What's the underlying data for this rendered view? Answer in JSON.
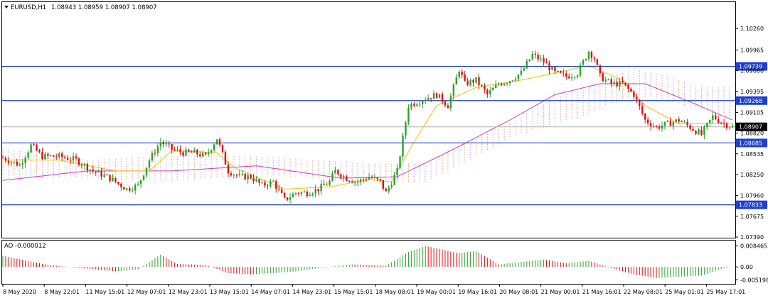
{
  "header": {
    "symbol_label": "EURUSD,H1",
    "ohlc_label": "1.08943 1.08959 1.08907 1.08907"
  },
  "indicator": {
    "label": "AO -0.000012"
  },
  "colors": {
    "grid": "#000000",
    "bull_candle": "#2aa12a",
    "bear_candle": "#e01010",
    "level_line": "#1f3fd0",
    "ma_fast": "#f2c200",
    "ma_slow": "#c040c0",
    "cloud_a": "#f0a070",
    "cloud_b": "#c8a0d8",
    "ao_up": "#2aa12a",
    "ao_down": "#e01010"
  },
  "chart_data": [
    {
      "type": "candlestick",
      "title": "EURUSD,H1",
      "ylim": [
        1.0739,
        1.1036
      ],
      "x_tick_labels": [
        "8 May 2020",
        "8 May 22:01",
        "11 May 15:01",
        "12 May 07:01",
        "12 May 23:01",
        "13 May 15:01",
        "14 May 07:01",
        "14 May 23:01",
        "15 May 15:01",
        "18 May 08:01",
        "19 May 00:01",
        "19 May 16:01",
        "20 May 08:01",
        "21 May 00:01",
        "21 May 16:01",
        "22 May 08:01",
        "25 May 01:01",
        "25 May 17:01"
      ],
      "y_tick_labels": [
        "1.10260",
        "1.09965",
        "1.09680",
        "1.09395",
        "1.09105",
        "1.08820",
        "1.08535",
        "1.08250",
        "1.07960",
        "1.07675",
        "1.07390"
      ],
      "horizontal_levels": [
        1.09739,
        1.09268,
        1.08685,
        1.07833
      ],
      "current_price": 1.08907,
      "close_path": [
        {
          "x": 0,
          "y": 1.0848
        },
        {
          "x": 6,
          "y": 1.0838
        },
        {
          "x": 10,
          "y": 1.0865
        },
        {
          "x": 14,
          "y": 1.085
        },
        {
          "x": 20,
          "y": 1.085
        },
        {
          "x": 26,
          "y": 1.0845
        },
        {
          "x": 32,
          "y": 1.083
        },
        {
          "x": 38,
          "y": 1.082
        },
        {
          "x": 44,
          "y": 1.0805
        },
        {
          "x": 48,
          "y": 1.081
        },
        {
          "x": 52,
          "y": 1.0845
        },
        {
          "x": 56,
          "y": 1.087
        },
        {
          "x": 60,
          "y": 1.086
        },
        {
          "x": 64,
          "y": 1.0855
        },
        {
          "x": 68,
          "y": 1.0855
        },
        {
          "x": 72,
          "y": 1.085
        },
        {
          "x": 76,
          "y": 1.0875
        },
        {
          "x": 80,
          "y": 1.083
        },
        {
          "x": 84,
          "y": 1.0822
        },
        {
          "x": 88,
          "y": 1.0822
        },
        {
          "x": 92,
          "y": 1.081
        },
        {
          "x": 96,
          "y": 1.0815
        },
        {
          "x": 100,
          "y": 1.079
        },
        {
          "x": 104,
          "y": 1.08
        },
        {
          "x": 108,
          "y": 1.08
        },
        {
          "x": 112,
          "y": 1.0805
        },
        {
          "x": 116,
          "y": 1.0815
        },
        {
          "x": 118,
          "y": 1.083
        },
        {
          "x": 122,
          "y": 1.082
        },
        {
          "x": 126,
          "y": 1.0815
        },
        {
          "x": 130,
          "y": 1.0822
        },
        {
          "x": 134,
          "y": 1.0815
        },
        {
          "x": 136,
          "y": 1.08
        },
        {
          "x": 140,
          "y": 1.083
        },
        {
          "x": 144,
          "y": 1.092
        },
        {
          "x": 150,
          "y": 1.093
        },
        {
          "x": 154,
          "y": 1.0935
        },
        {
          "x": 158,
          "y": 1.092
        },
        {
          "x": 162,
          "y": 1.097
        },
        {
          "x": 164,
          "y": 1.095
        },
        {
          "x": 168,
          "y": 1.0955
        },
        {
          "x": 172,
          "y": 1.0935
        },
        {
          "x": 176,
          "y": 1.095
        },
        {
          "x": 180,
          "y": 1.0955
        },
        {
          "x": 184,
          "y": 1.0965
        },
        {
          "x": 188,
          "y": 1.099
        },
        {
          "x": 192,
          "y": 1.098
        },
        {
          "x": 196,
          "y": 1.0965
        },
        {
          "x": 200,
          "y": 1.096
        },
        {
          "x": 204,
          "y": 1.0965
        },
        {
          "x": 208,
          "y": 1.0995
        },
        {
          "x": 210,
          "y": 1.0985
        },
        {
          "x": 212,
          "y": 1.096
        },
        {
          "x": 216,
          "y": 1.095
        },
        {
          "x": 220,
          "y": 1.095
        },
        {
          "x": 224,
          "y": 1.0935
        },
        {
          "x": 228,
          "y": 1.09
        },
        {
          "x": 232,
          "y": 1.089
        },
        {
          "x": 236,
          "y": 1.0895
        },
        {
          "x": 240,
          "y": 1.09
        },
        {
          "x": 244,
          "y": 1.089
        },
        {
          "x": 248,
          "y": 1.088
        },
        {
          "x": 252,
          "y": 1.0905
        },
        {
          "x": 256,
          "y": 1.0895
        },
        {
          "x": 259,
          "y": 1.08907
        }
      ],
      "ma_fast_path": [
        {
          "x": 0,
          "y": 1.0845
        },
        {
          "x": 20,
          "y": 1.0845
        },
        {
          "x": 40,
          "y": 1.083
        },
        {
          "x": 52,
          "y": 1.083
        },
        {
          "x": 60,
          "y": 1.0858
        },
        {
          "x": 76,
          "y": 1.0855
        },
        {
          "x": 82,
          "y": 1.0835
        },
        {
          "x": 100,
          "y": 1.0805
        },
        {
          "x": 116,
          "y": 1.0808
        },
        {
          "x": 130,
          "y": 1.0818
        },
        {
          "x": 138,
          "y": 1.0815
        },
        {
          "x": 146,
          "y": 1.087
        },
        {
          "x": 154,
          "y": 1.092
        },
        {
          "x": 168,
          "y": 1.0945
        },
        {
          "x": 184,
          "y": 1.0955
        },
        {
          "x": 200,
          "y": 1.0968
        },
        {
          "x": 208,
          "y": 1.0975
        },
        {
          "x": 220,
          "y": 1.0955
        },
        {
          "x": 228,
          "y": 1.092
        },
        {
          "x": 240,
          "y": 1.0895
        },
        {
          "x": 259,
          "y": 1.0895
        }
      ],
      "ma_slow_path": [
        {
          "x": 0,
          "y": 1.0817
        },
        {
          "x": 30,
          "y": 1.083
        },
        {
          "x": 60,
          "y": 1.083
        },
        {
          "x": 90,
          "y": 1.0837
        },
        {
          "x": 120,
          "y": 1.082
        },
        {
          "x": 140,
          "y": 1.0822
        },
        {
          "x": 160,
          "y": 1.086
        },
        {
          "x": 180,
          "y": 1.09
        },
        {
          "x": 196,
          "y": 1.0935
        },
        {
          "x": 212,
          "y": 1.095
        },
        {
          "x": 228,
          "y": 1.095
        },
        {
          "x": 244,
          "y": 1.0925
        },
        {
          "x": 259,
          "y": 1.09
        }
      ],
      "cloud_upper_path": [
        {
          "x": 0,
          "y": 1.086
        },
        {
          "x": 30,
          "y": 1.0845
        },
        {
          "x": 60,
          "y": 1.085
        },
        {
          "x": 90,
          "y": 1.085
        },
        {
          "x": 110,
          "y": 1.0845
        },
        {
          "x": 130,
          "y": 1.084
        },
        {
          "x": 150,
          "y": 1.084
        },
        {
          "x": 166,
          "y": 1.087
        },
        {
          "x": 180,
          "y": 1.0895
        },
        {
          "x": 196,
          "y": 1.093
        },
        {
          "x": 206,
          "y": 1.0945
        },
        {
          "x": 224,
          "y": 1.097
        },
        {
          "x": 236,
          "y": 1.096
        },
        {
          "x": 248,
          "y": 1.0945
        },
        {
          "x": 259,
          "y": 1.0945
        }
      ],
      "cloud_lower_path": [
        {
          "x": 0,
          "y": 1.082
        },
        {
          "x": 30,
          "y": 1.082
        },
        {
          "x": 60,
          "y": 1.0815
        },
        {
          "x": 90,
          "y": 1.0825
        },
        {
          "x": 110,
          "y": 1.082
        },
        {
          "x": 130,
          "y": 1.0815
        },
        {
          "x": 150,
          "y": 1.0815
        },
        {
          "x": 166,
          "y": 1.0845
        },
        {
          "x": 180,
          "y": 1.0875
        },
        {
          "x": 196,
          "y": 1.0895
        },
        {
          "x": 206,
          "y": 1.0905
        },
        {
          "x": 224,
          "y": 1.0935
        },
        {
          "x": 236,
          "y": 1.0925
        },
        {
          "x": 248,
          "y": 1.0915
        },
        {
          "x": 259,
          "y": 1.0905
        }
      ]
    },
    {
      "type": "histogram",
      "title": "AO -0.000012",
      "ylim": [
        -0.00598,
        0.00865
      ],
      "y_tick_labels": [
        "0.008465",
        "0.00",
        "-0.005198"
      ],
      "values_path": [
        {
          "x": 0,
          "y": 0.0045
        },
        {
          "x": 16,
          "y": 0.0008
        },
        {
          "x": 28,
          "y": -0.0005
        },
        {
          "x": 40,
          "y": -0.0018
        },
        {
          "x": 48,
          "y": -0.001
        },
        {
          "x": 56,
          "y": 0.005
        },
        {
          "x": 62,
          "y": 0.0012
        },
        {
          "x": 72,
          "y": 0.0008
        },
        {
          "x": 80,
          "y": -0.0025
        },
        {
          "x": 88,
          "y": -0.003
        },
        {
          "x": 96,
          "y": -0.0025
        },
        {
          "x": 104,
          "y": -0.0018
        },
        {
          "x": 112,
          "y": -0.0005
        },
        {
          "x": 124,
          "y": 0.001
        },
        {
          "x": 136,
          "y": 0.0005
        },
        {
          "x": 144,
          "y": 0.006
        },
        {
          "x": 150,
          "y": 0.0085
        },
        {
          "x": 156,
          "y": 0.007
        },
        {
          "x": 162,
          "y": 0.0055
        },
        {
          "x": 168,
          "y": 0.0065
        },
        {
          "x": 176,
          "y": 0.001
        },
        {
          "x": 184,
          "y": 0.002
        },
        {
          "x": 192,
          "y": 0.003
        },
        {
          "x": 200,
          "y": 0.0015
        },
        {
          "x": 208,
          "y": 0.0025
        },
        {
          "x": 216,
          "y": -0.0005
        },
        {
          "x": 224,
          "y": -0.003
        },
        {
          "x": 232,
          "y": -0.0045
        },
        {
          "x": 240,
          "y": -0.004
        },
        {
          "x": 248,
          "y": -0.0035
        },
        {
          "x": 256,
          "y": -0.0005
        },
        {
          "x": 259,
          "y": 0.0
        }
      ]
    }
  ]
}
